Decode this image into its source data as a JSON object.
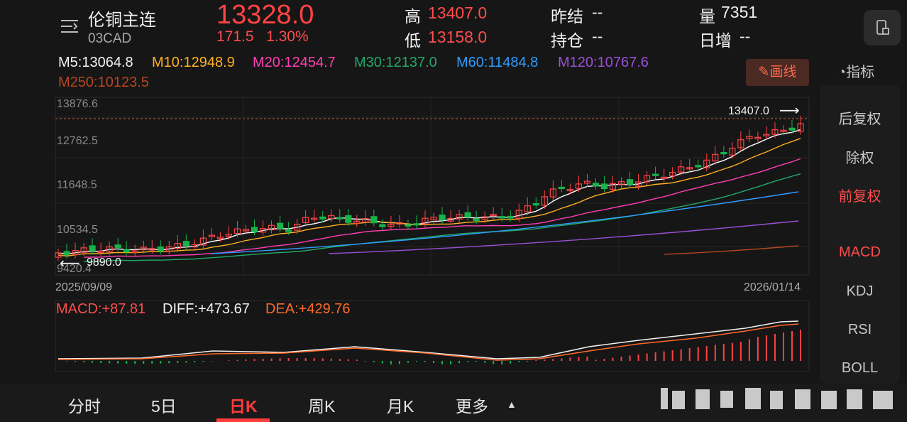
{
  "header": {
    "title": "伦铜主连",
    "code": "03CAD",
    "price": "13328.0",
    "change_abs": "171.5",
    "change_pct": "1.30%",
    "high_label": "高",
    "high_value": "13407.0",
    "low_label": "低",
    "low_value": "13158.0",
    "prev_settle_label": "昨结",
    "prev_settle_value": "--",
    "open_interest_label": "持仓",
    "open_interest_value": "--",
    "volume_label": "量",
    "volume_value": "7351",
    "daily_increase_label": "日增",
    "daily_increase_value": "--"
  },
  "ma": {
    "m5": "M5:13064.8",
    "m10": "M10:12948.9",
    "m20": "M20:12454.7",
    "m30": "M30:12137.0",
    "m60": "M60:11484.8",
    "m120": "M120:10767.6",
    "m250": "M250:10123.5"
  },
  "toolbar": {
    "draw_label": "画线",
    "indicator_label": "指标"
  },
  "side_panel": {
    "items": [
      "后复权",
      "除权",
      "前复权",
      "MACD",
      "KDJ",
      "RSI",
      "BOLL"
    ],
    "active_adjust": "前复权",
    "active_indicator": "MACD"
  },
  "chart": {
    "y_ticks": [
      "13876.6",
      "12762.5",
      "11648.5",
      "10534.5",
      "9420.4"
    ],
    "start_date": "2025/09/09",
    "end_date": "2026/01/14",
    "max_label": "13407.0",
    "min_label": "9890.0"
  },
  "macd": {
    "macd": "MACD:+87.81",
    "diff": "DIFF:+473.67",
    "dea": "DEA:+429.76"
  },
  "tabs": [
    "分时",
    "5日",
    "日K",
    "周K",
    "月K",
    "更多"
  ],
  "active_tab": "日K",
  "colors": {
    "up": "#ff4343",
    "down": "#19b34a",
    "m5": "#ffffff",
    "m10": "#ffb020",
    "m20": "#ff3fb4",
    "m30": "#22a86a",
    "m60": "#2f9cff",
    "m120": "#9a4fd6",
    "m250": "#b5461e"
  },
  "chart_data": {
    "type": "candlestick",
    "x_range": [
      "2025/09/09",
      "2026/01/14"
    ],
    "ylim": [
      9420.4,
      13876.6
    ],
    "high": 13407.0,
    "low": 9890.0,
    "last_close": 13328.0
  }
}
